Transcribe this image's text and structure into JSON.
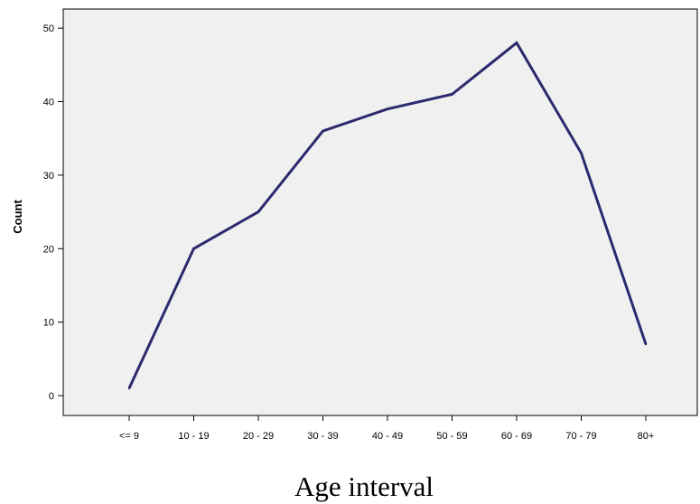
{
  "chart_data": {
    "type": "line",
    "title": "",
    "xlabel": "Age interval",
    "ylabel": "Count",
    "categories": [
      "<= 9",
      "10 - 19",
      "20 - 29",
      "30 - 39",
      "40 - 49",
      "50 - 59",
      "60 - 69",
      "70 - 79",
      "80+"
    ],
    "series": [
      {
        "values": [
          1,
          20,
          25,
          36,
          39,
          41,
          48,
          33,
          7
        ]
      }
    ],
    "ylim": [
      -2.7,
      52.6
    ],
    "yticks": [
      0,
      10,
      20,
      30,
      40,
      50
    ],
    "grid": false,
    "legend": "none",
    "colors": {
      "plot_background": "#f0f0f0",
      "line": "#2b2a6e",
      "axis": "#000000"
    }
  }
}
